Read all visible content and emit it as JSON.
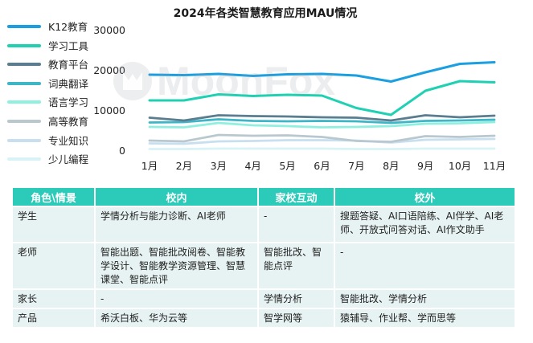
{
  "chart_data": {
    "type": "line",
    "title": "2024年各类智慧教育应用MAU情况",
    "categories": [
      "1月",
      "2月",
      "3月",
      "4月",
      "5月",
      "6月",
      "7月",
      "8月",
      "9月",
      "10月",
      "11月"
    ],
    "y_ticks": [
      "0",
      "10000",
      "20000",
      "30000"
    ],
    "ylim": [
      0,
      30000
    ],
    "grid": false,
    "legend_position": "left",
    "series": [
      {
        "name": "K12教育",
        "color": "#1a9fe0",
        "values": [
          18800,
          18700,
          19000,
          18500,
          18900,
          19000,
          18600,
          17100,
          19400,
          21500,
          21900
        ]
      },
      {
        "name": "学习工具",
        "color": "#1fd1b2",
        "values": [
          12400,
          12400,
          13900,
          13500,
          13800,
          13600,
          10500,
          8800,
          14800,
          17200,
          16900
        ]
      },
      {
        "name": "教育平台",
        "color": "#5a7d8f",
        "values": [
          8100,
          7400,
          8700,
          8500,
          8400,
          8200,
          8100,
          7400,
          8700,
          8200,
          8600
        ]
      },
      {
        "name": "词典翻译",
        "color": "#3eb6c8",
        "values": [
          6900,
          7000,
          7700,
          7300,
          7200,
          7300,
          7200,
          6800,
          7300,
          7400,
          7600
        ]
      },
      {
        "name": "语言学习",
        "color": "#8ff0e0",
        "values": [
          5800,
          5700,
          6800,
          6200,
          6000,
          5700,
          5800,
          6000,
          6600,
          6700,
          7000
        ]
      },
      {
        "name": "高等教育",
        "color": "#b9c8cf",
        "values": [
          2400,
          2200,
          3800,
          3600,
          3700,
          3300,
          2300,
          2100,
          3500,
          3300,
          3600
        ]
      },
      {
        "name": "专业知识",
        "color": "#c8dfef",
        "values": [
          1700,
          1600,
          2200,
          2300,
          2500,
          2500,
          2400,
          1900,
          2600,
          2700,
          2800
        ]
      },
      {
        "name": "少儿编程",
        "color": "#d8f3f6",
        "values": [
          300,
          300,
          400,
          400,
          400,
          400,
          300,
          300,
          400,
          400,
          400
        ]
      }
    ]
  },
  "watermark": {
    "text": "MoonFox",
    "color": "#9aa0a6"
  },
  "table": {
    "headers": [
      "角色\\情景",
      "校内",
      "家校互动",
      "校外"
    ],
    "rows": [
      {
        "role": "学生",
        "school": "学情分析与能力诊断、AI老师",
        "home": "-",
        "outside": "搜题答疑、AI口语陪练、AI伴学、AI老师、开放式问答对话、AI作文助手"
      },
      {
        "role": "老师",
        "school": "智能出题、智能批改阅卷、智能教学设计、智能教学资源管理、智慧课堂、智能点评",
        "home": "智能批改、智能点评",
        "outside": "-"
      },
      {
        "role": "家长",
        "school": "-",
        "home": "学情分析",
        "outside": "智能批改、学情分析"
      },
      {
        "role": "产品",
        "school": "希沃白板、华为云等",
        "home": "智学网等",
        "outside": "猿辅导、作业帮、学而思等"
      }
    ]
  }
}
